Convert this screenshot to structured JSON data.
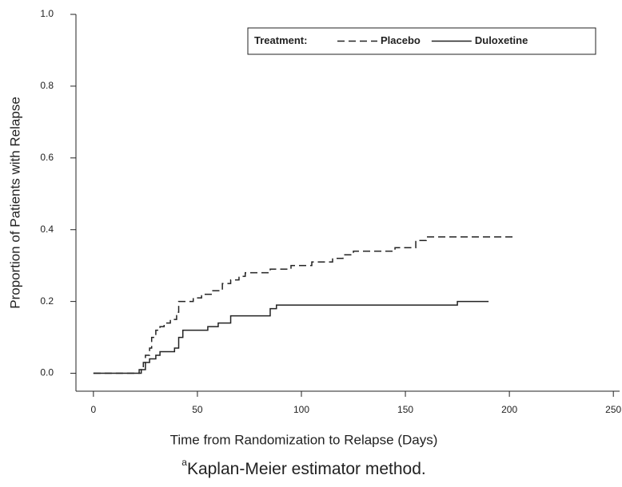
{
  "chart_data": {
    "type": "line",
    "step": "post",
    "xlabel": "Time from Randomization to Relapse (Days)",
    "ylabel": "Proportion of Patients with Relapse",
    "legend_title": "Treatment:",
    "legend": "upper right",
    "xlim": [
      -8.4,
      253
    ],
    "ylim": [
      -0.05,
      1.0
    ],
    "xticks": [
      0,
      50,
      100,
      150,
      200,
      250
    ],
    "yticks": [
      {
        "value": 0,
        "label": "0.0"
      },
      {
        "value": 0.2,
        "label": "0.2"
      },
      {
        "value": 0.4,
        "label": "0.4"
      },
      {
        "value": 0.6,
        "label": "0.6"
      },
      {
        "value": 0.8,
        "label": "0.8"
      },
      {
        "value": 1.0,
        "label": "1.0"
      }
    ],
    "series": [
      {
        "name": "Placebo",
        "color": "#222222",
        "dash": true,
        "x": [
          0,
          22,
          24,
          25,
          27,
          28,
          30,
          32,
          34,
          37,
          40,
          41,
          48,
          52,
          57,
          62,
          66,
          70,
          73,
          85,
          95,
          105,
          115,
          120,
          125,
          145,
          155,
          160,
          203
        ],
        "values": [
          0,
          0.01,
          0.03,
          0.05,
          0.07,
          0.1,
          0.12,
          0.13,
          0.14,
          0.15,
          0.17,
          0.2,
          0.21,
          0.22,
          0.23,
          0.25,
          0.26,
          0.27,
          0.28,
          0.29,
          0.3,
          0.31,
          0.32,
          0.33,
          0.34,
          0.35,
          0.37,
          0.38,
          0.38
        ]
      },
      {
        "name": "Duloxetine",
        "color": "#222222",
        "dash": false,
        "x": [
          0,
          22,
          23,
          25,
          27,
          30,
          32,
          39,
          41,
          43,
          55,
          60,
          66,
          85,
          88,
          175,
          190
        ],
        "values": [
          0,
          0,
          0.01,
          0.03,
          0.04,
          0.05,
          0.06,
          0.07,
          0.1,
          0.12,
          0.13,
          0.14,
          0.16,
          0.18,
          0.19,
          0.2,
          0.2
        ]
      }
    ]
  },
  "footnote": {
    "marker": "a",
    "text": "Kaplan-Meier estimator method."
  }
}
